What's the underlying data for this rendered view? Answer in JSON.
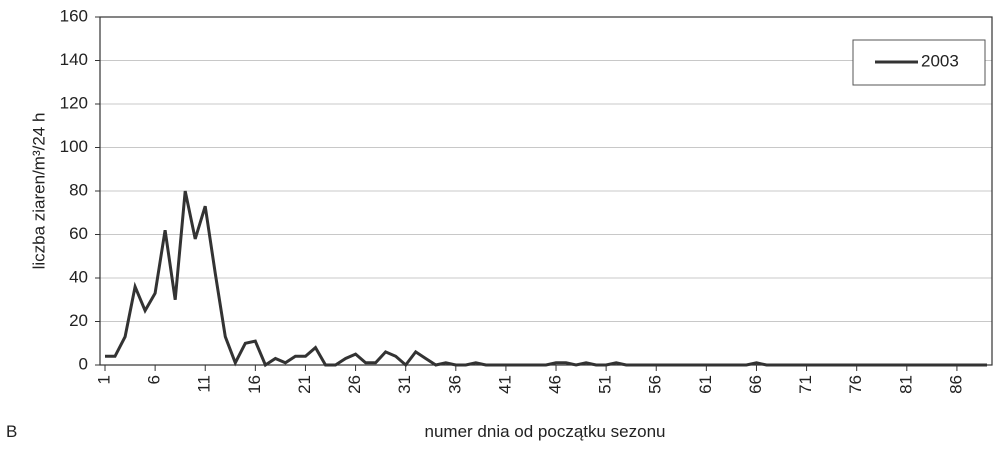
{
  "chart_data": {
    "type": "line",
    "y_label": "liczba ziaren/m³/24 h",
    "x_label": "numer dnia od początku sezonu",
    "panel_label": "B",
    "x": [
      1,
      2,
      3,
      4,
      5,
      6,
      7,
      8,
      9,
      10,
      11,
      12,
      13,
      14,
      15,
      16,
      17,
      18,
      19,
      20,
      21,
      22,
      23,
      24,
      25,
      26,
      27,
      28,
      29,
      30,
      31,
      32,
      33,
      34,
      35,
      36,
      37,
      38,
      39,
      40,
      41,
      42,
      43,
      44,
      45,
      46,
      47,
      48,
      49,
      50,
      51,
      52,
      53,
      54,
      55,
      56,
      57,
      58,
      59,
      60,
      61,
      62,
      63,
      64,
      65,
      66,
      67,
      68,
      69,
      70,
      71,
      72,
      73,
      74,
      75,
      76,
      77,
      78,
      79,
      80,
      81,
      82,
      83,
      84,
      85,
      86,
      87,
      88,
      89
    ],
    "series": [
      {
        "name": "2003",
        "color": "#333333",
        "values": [
          4,
          4,
          13,
          36,
          25,
          33,
          62,
          30,
          80,
          58,
          73,
          42,
          13,
          1,
          10,
          11,
          0,
          3,
          1,
          4,
          4,
          8,
          0,
          0,
          3,
          5,
          1,
          1,
          6,
          4,
          0,
          6,
          3,
          0,
          1,
          0,
          0,
          1,
          0,
          0,
          0,
          0,
          0,
          0,
          0,
          1,
          1,
          0,
          1,
          0,
          0,
          1,
          0,
          0,
          0,
          0,
          0,
          0,
          0,
          0,
          0,
          0,
          0,
          0,
          0,
          1,
          0,
          0,
          0,
          0,
          0,
          0,
          0,
          0,
          0,
          0,
          0,
          0,
          0,
          0,
          0,
          0,
          0,
          0,
          0,
          0,
          0,
          0,
          0
        ]
      }
    ],
    "xlim": [
      0.5,
      89.5
    ],
    "xticks": [
      1,
      6,
      11,
      16,
      21,
      26,
      31,
      36,
      41,
      46,
      51,
      56,
      61,
      66,
      71,
      76,
      81,
      86
    ],
    "ylim": [
      0,
      160
    ],
    "yticks": [
      0,
      20,
      40,
      60,
      80,
      100,
      120,
      140,
      160
    ],
    "grid": true,
    "legend": "upper right"
  }
}
